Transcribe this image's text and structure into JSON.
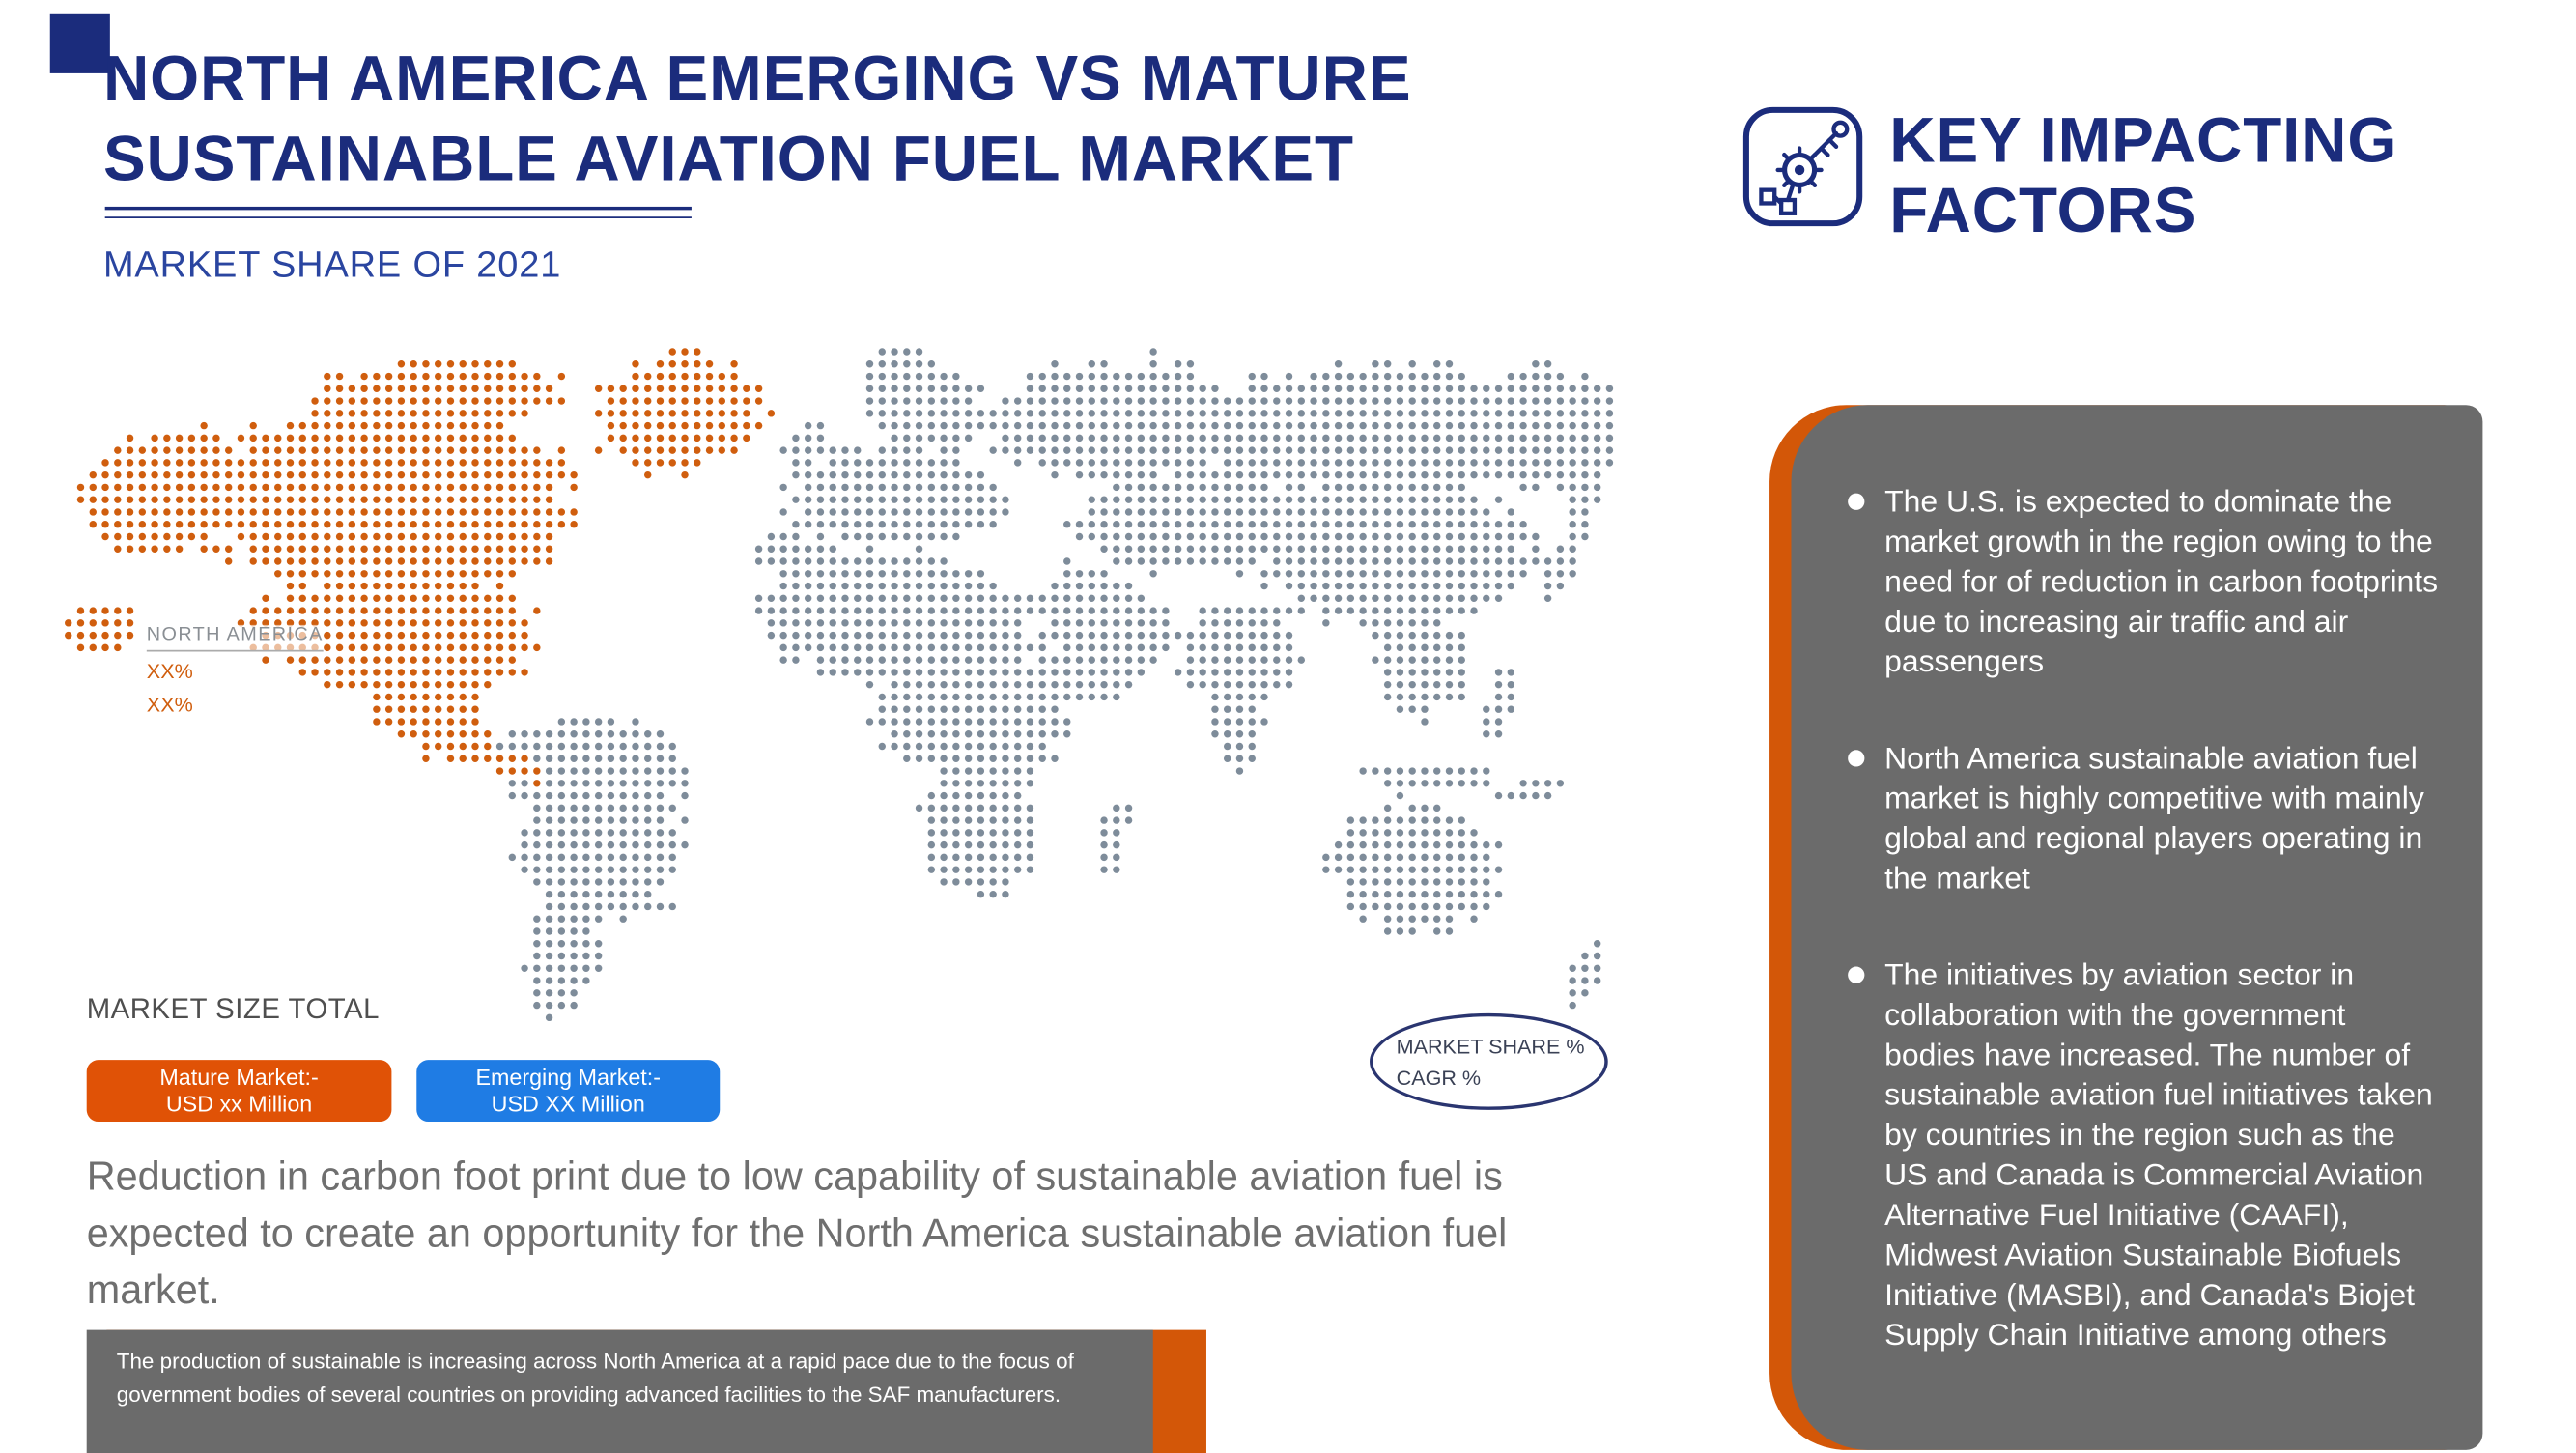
{
  "header": {
    "title_line1": "NORTH AMERICA EMERGING VS MATURE",
    "title_line2": "SUSTAINABLE AVIATION FUEL MARKET",
    "subtitle": "MARKET SHARE OF 2021"
  },
  "key_factors": {
    "icon": "key-gears-icon",
    "heading_line1": "KEY IMPACTING",
    "heading_line2": "FACTORS",
    "bullets": [
      "The U.S. is expected to dominate the market growth in the region owing to the need for of reduction in carbon footprints due to increasing air traffic and air passengers",
      "North America sustainable aviation fuel market is highly competitive with mainly global and regional players operating in the market",
      "The initiatives by aviation sector in collaboration with the government bodies have increased. The number of sustainable aviation fuel initiatives taken by countries in the region such as the US and Canada is Commercial Aviation Alternative Fuel Initiative (CAAFI), Midwest Aviation Sustainable Biofuels Initiative (MASBI), and Canada's Biojet Supply Chain Initiative among others"
    ]
  },
  "map": {
    "region_label": "NORTH AMERICA",
    "market_share": "XX%",
    "cagr": "XX%"
  },
  "market_size": {
    "label": "MARKET SIZE TOTAL",
    "mature_line1": "Mature Market:-",
    "mature_line2": "USD xx Million",
    "emerging_line1": "Emerging Market:-",
    "emerging_line2": "USD XX Million"
  },
  "badge": {
    "line1": "MARKET SHARE %",
    "line2": "CAGR %"
  },
  "opportunity_text": "Reduction in carbon foot print due to low capability of sustainable aviation fuel is expected to create an opportunity for the North America sustainable aviation fuel market.",
  "note_text": "The production of sustainable is increasing across North America at a rapid pace due to the focus of government bodies of several countries on providing advanced facilities to the SAF manufacturers.",
  "colors": {
    "navy": "#1b2c7c",
    "subtitle_blue": "#2a45a0",
    "orange": "#e05206",
    "accent_orange": "#d35708",
    "map_orange": "#d05e0e",
    "map_gray": "#7e8c9a",
    "panel_gray": "#6b6b6b",
    "button_blue": "#1f7ce4"
  },
  "chart_data": {
    "type": "map",
    "title": "NORTH AMERICA EMERGING VS MATURE SUSTAINABLE AVIATION FUEL MARKET",
    "subtitle": "MARKET SHARE OF 2021",
    "highlighted_region": {
      "name": "NORTH AMERICA",
      "market_share_2021": "XX%",
      "cagr": "XX%"
    },
    "market_size_total": {
      "mature_market": "USD xx Million",
      "emerging_market": "USD XX Million"
    },
    "legend": [
      "MARKET SHARE %",
      "CAGR %"
    ],
    "legend_position": "bottom-left"
  }
}
